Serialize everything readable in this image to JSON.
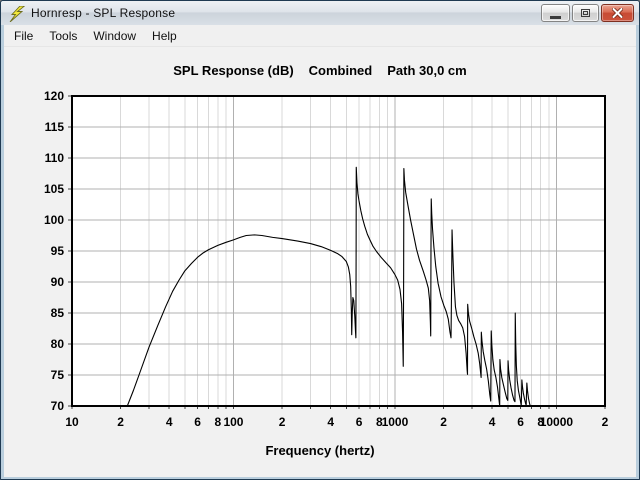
{
  "window": {
    "title": "Hornresp - SPL Response",
    "icon": "lightning-bolt",
    "controls": [
      "minimize",
      "maximize",
      "close"
    ]
  },
  "menu": {
    "items": [
      "File",
      "Tools",
      "Window",
      "Help"
    ]
  },
  "chart": {
    "title_parts": [
      "SPL Response (dB)",
      "Combined",
      "Path 30,0 cm"
    ],
    "xlabel": "Frequency (hertz)"
  },
  "colors": {
    "curve": "#000000",
    "grid_minor": "#d9d9d9",
    "grid_major": "#b0b0b0",
    "plot_border": "#000000",
    "plot_bg": "#ffffff",
    "client_bg": "#f1f1f1",
    "close_button": "#cd523c",
    "app_icon_yellow": "#f4e93b"
  },
  "chart_data": {
    "type": "line",
    "title": "SPL Response (dB)  Combined  Path 30,0 cm",
    "xlabel": "Frequency (hertz)",
    "ylabel": "",
    "x_scale": "log",
    "xlim": [
      10,
      20000
    ],
    "ylim": [
      70,
      120
    ],
    "grid": true,
    "y_ticks": [
      120,
      115,
      110,
      105,
      100,
      95,
      90,
      85,
      80,
      75,
      70
    ],
    "x_ticks": [
      {
        "f": 10,
        "label": "10"
      },
      {
        "f": 20,
        "label": "2"
      },
      {
        "f": 40,
        "label": "4"
      },
      {
        "f": 60,
        "label": "6"
      },
      {
        "f": 80,
        "label": "8"
      },
      {
        "f": 100,
        "label": "100"
      },
      {
        "f": 200,
        "label": "2"
      },
      {
        "f": 400,
        "label": "4"
      },
      {
        "f": 600,
        "label": "6"
      },
      {
        "f": 800,
        "label": "8"
      },
      {
        "f": 1000,
        "label": "1000"
      },
      {
        "f": 2000,
        "label": "2"
      },
      {
        "f": 4000,
        "label": "4"
      },
      {
        "f": 6000,
        "label": "6"
      },
      {
        "f": 8000,
        "label": "8"
      },
      {
        "f": 10000,
        "label": "10000"
      },
      {
        "f": 20000,
        "label": "2"
      }
    ],
    "series": [
      {
        "name": "Combined SPL",
        "color": "#000000",
        "points": [
          [
            22,
            70
          ],
          [
            24,
            72.5
          ],
          [
            26,
            75
          ],
          [
            30,
            79.5
          ],
          [
            34,
            83
          ],
          [
            38,
            86
          ],
          [
            42,
            88.5
          ],
          [
            46,
            90.3
          ],
          [
            50,
            91.8
          ],
          [
            55,
            93
          ],
          [
            60,
            94
          ],
          [
            65,
            94.7
          ],
          [
            70,
            95.2
          ],
          [
            80,
            95.9
          ],
          [
            90,
            96.4
          ],
          [
            100,
            96.8
          ],
          [
            110,
            97.2
          ],
          [
            120,
            97.5
          ],
          [
            135,
            97.6
          ],
          [
            150,
            97.5
          ],
          [
            175,
            97.2
          ],
          [
            200,
            97.0
          ],
          [
            250,
            96.6
          ],
          [
            300,
            96.2
          ],
          [
            350,
            95.7
          ],
          [
            400,
            95.1
          ],
          [
            440,
            94.6
          ],
          [
            470,
            94.1
          ],
          [
            500,
            93.3
          ],
          [
            515,
            92.4
          ],
          [
            525,
            91.2
          ],
          [
            532,
            89.3
          ],
          [
            537,
            85.5
          ],
          [
            540,
            81.5
          ],
          [
            544,
            85
          ],
          [
            549,
            87.5
          ],
          [
            556,
            87
          ],
          [
            564,
            84.5
          ],
          [
            570,
            82
          ],
          [
            573,
            81
          ],
          [
            575,
            95
          ],
          [
            576,
            108.5
          ],
          [
            582,
            106
          ],
          [
            590,
            104.2
          ],
          [
            600,
            103
          ],
          [
            615,
            101.5
          ],
          [
            631,
            100.2
          ],
          [
            650,
            99
          ],
          [
            675,
            97.7
          ],
          [
            700,
            96.8
          ],
          [
            730,
            95.8
          ],
          [
            770,
            94.9
          ],
          [
            820,
            94
          ],
          [
            880,
            93.1
          ],
          [
            940,
            92.3
          ],
          [
            1000,
            91.2
          ],
          [
            1040,
            90.3
          ],
          [
            1075,
            88.8
          ],
          [
            1100,
            86.5
          ],
          [
            1115,
            82
          ],
          [
            1126,
            76.4
          ],
          [
            1132,
            90
          ],
          [
            1136,
            108.3
          ],
          [
            1145,
            106.5
          ],
          [
            1165,
            104.5
          ],
          [
            1205,
            102.3
          ],
          [
            1250,
            100
          ],
          [
            1300,
            97.8
          ],
          [
            1360,
            95.3
          ],
          [
            1420,
            93.5
          ],
          [
            1500,
            91.7
          ],
          [
            1560,
            90.3
          ],
          [
            1610,
            89
          ],
          [
            1640,
            87
          ],
          [
            1658,
            83.5
          ],
          [
            1666,
            81.3
          ],
          [
            1672,
            95
          ],
          [
            1678,
            103.4
          ],
          [
            1690,
            101
          ],
          [
            1710,
            98.5
          ],
          [
            1745,
            95.5
          ],
          [
            1790,
            92.5
          ],
          [
            1850,
            89.8
          ],
          [
            1930,
            87.6
          ],
          [
            2010,
            86.2
          ],
          [
            2080,
            85.2
          ],
          [
            2140,
            84
          ],
          [
            2190,
            82
          ],
          [
            2225,
            81.0
          ],
          [
            2245,
            90
          ],
          [
            2258,
            98.4
          ],
          [
            2280,
            95
          ],
          [
            2320,
            90
          ],
          [
            2370,
            86
          ],
          [
            2420,
            84.6
          ],
          [
            2480,
            83.8
          ],
          [
            2550,
            83.3
          ],
          [
            2630,
            82.6
          ],
          [
            2700,
            81.2
          ],
          [
            2760,
            78.5
          ],
          [
            2800,
            75.8
          ],
          [
            2815,
            75.1
          ],
          [
            2822,
            86.4
          ],
          [
            2850,
            85
          ],
          [
            2900,
            83.7
          ],
          [
            2990,
            82.5
          ],
          [
            3080,
            81.2
          ],
          [
            3180,
            80
          ],
          [
            3280,
            78.5
          ],
          [
            3350,
            76.8
          ],
          [
            3400,
            75.2
          ],
          [
            3418,
            74.6
          ],
          [
            3428,
            81.9
          ],
          [
            3460,
            80.5
          ],
          [
            3520,
            78.8
          ],
          [
            3600,
            77.4
          ],
          [
            3700,
            75.9
          ],
          [
            3790,
            74
          ],
          [
            3870,
            71.8
          ],
          [
            3920,
            70.8
          ],
          [
            3948,
            82.1
          ],
          [
            3980,
            80
          ],
          [
            4040,
            77.5
          ],
          [
            4120,
            75.8
          ],
          [
            4220,
            74.6
          ],
          [
            4320,
            73
          ],
          [
            4410,
            71
          ],
          [
            4455,
            70.0
          ],
          [
            4470,
            77.5
          ],
          [
            4510,
            76
          ],
          [
            4590,
            74.6
          ],
          [
            4700,
            73.4
          ],
          [
            4820,
            72.2
          ],
          [
            4930,
            71.2
          ],
          [
            5000,
            70.9
          ],
          [
            5018,
            77.3
          ],
          [
            5060,
            75.8
          ],
          [
            5140,
            74.2
          ],
          [
            5240,
            72.9
          ],
          [
            5360,
            71.7
          ],
          [
            5470,
            70.9
          ],
          [
            5540,
            70.7
          ],
          [
            5562,
            85.0
          ],
          [
            5600,
            80
          ],
          [
            5650,
            76.5
          ],
          [
            5720,
            74.1
          ],
          [
            5820,
            72.5
          ],
          [
            5950,
            71.2
          ],
          [
            6060,
            70.1
          ],
          [
            6112,
            74.2
          ],
          [
            6160,
            73.2
          ],
          [
            6240,
            72.1
          ],
          [
            6350,
            71.1
          ],
          [
            6460,
            70.3
          ],
          [
            6500,
            70.2
          ],
          [
            6562,
            73.7
          ],
          [
            6620,
            72.5
          ],
          [
            6720,
            71.2
          ],
          [
            6820,
            70.4
          ],
          [
            6880,
            70.05
          ]
        ]
      }
    ]
  }
}
